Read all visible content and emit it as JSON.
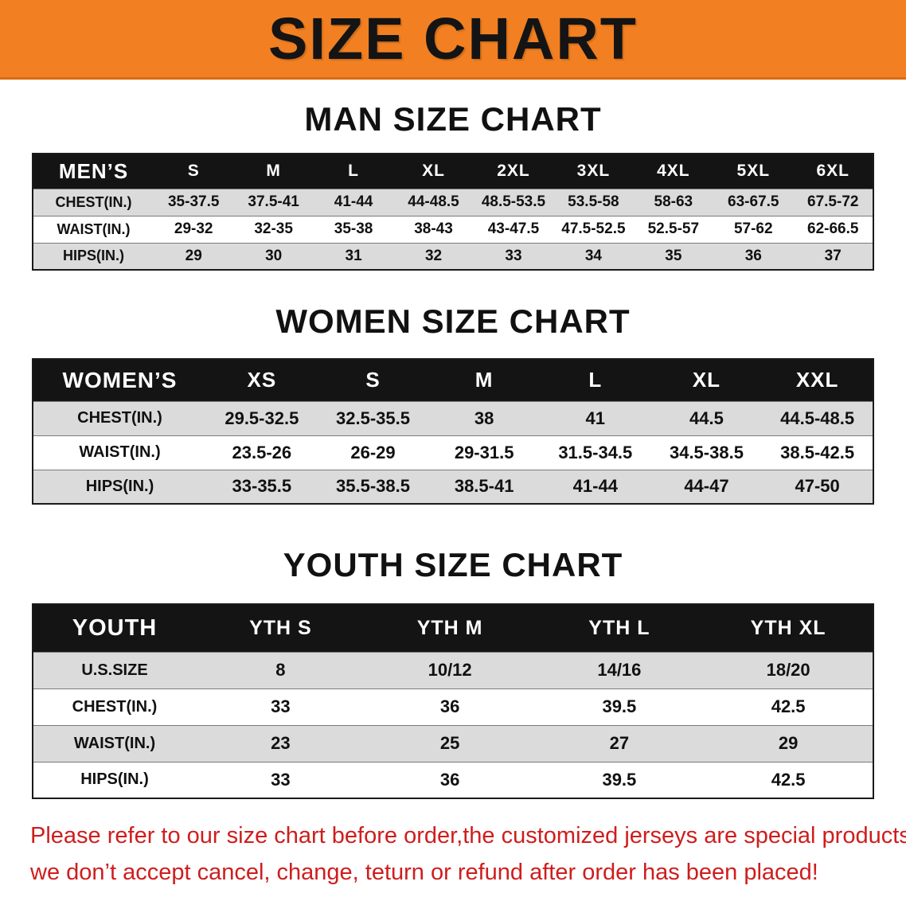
{
  "banner": {
    "title": "SIZE CHART",
    "bg_color": "#f28022",
    "text_color": "#141414"
  },
  "sections": [
    {
      "heading": "MAN SIZE CHART",
      "table": {
        "header": [
          "MEN’S",
          "S",
          "M",
          "L",
          "XL",
          "2XL",
          "3XL",
          "4XL",
          "5XL",
          "6XL"
        ],
        "rows": [
          [
            "CHEST(IN.)",
            "35-37.5",
            "37.5-41",
            "41-44",
            "44-48.5",
            "48.5-53.5",
            "53.5-58",
            "58-63",
            "63-67.5",
            "67.5-72"
          ],
          [
            "WAIST(IN.)",
            "29-32",
            "32-35",
            "35-38",
            "38-43",
            "43-47.5",
            "47.5-52.5",
            "52.5-57",
            "57-62",
            "62-66.5"
          ],
          [
            "HIPS(IN.)",
            "29",
            "30",
            "31",
            "32",
            "33",
            "34",
            "35",
            "36",
            "37"
          ]
        ]
      }
    },
    {
      "heading": "WOMEN SIZE CHART",
      "table": {
        "header": [
          "WOMEN’S",
          "XS",
          "S",
          "M",
          "L",
          "XL",
          "XXL"
        ],
        "rows": [
          [
            "CHEST(IN.)",
            "29.5-32.5",
            "32.5-35.5",
            "38",
            "41",
            "44.5",
            "44.5-48.5"
          ],
          [
            "WAIST(IN.)",
            "23.5-26",
            "26-29",
            "29-31.5",
            "31.5-34.5",
            "34.5-38.5",
            "38.5-42.5"
          ],
          [
            "HIPS(IN.)",
            "33-35.5",
            "35.5-38.5",
            "38.5-41",
            "41-44",
            "44-47",
            "47-50"
          ]
        ]
      }
    },
    {
      "heading": "YOUTH SIZE CHART",
      "table": {
        "header": [
          "YOUTH",
          "YTH S",
          "YTH M",
          "YTH L",
          "YTH XL"
        ],
        "rows": [
          [
            "U.S.SIZE",
            "8",
            "10/12",
            "14/16",
            "18/20"
          ],
          [
            "CHEST(IN.)",
            "33",
            "36",
            "39.5",
            "42.5"
          ],
          [
            "WAIST(IN.)",
            "23",
            "25",
            "27",
            "29"
          ],
          [
            "HIPS(IN.)",
            "33",
            "36",
            "39.5",
            "42.5"
          ]
        ]
      }
    }
  ],
  "disclaimer": {
    "line1": "Please refer to our size chart before order,the customized jerseys are special products,",
    "line2": "we don’t accept cancel, change, teturn or refund after order has been placed!",
    "color": "#cf1d1d"
  }
}
